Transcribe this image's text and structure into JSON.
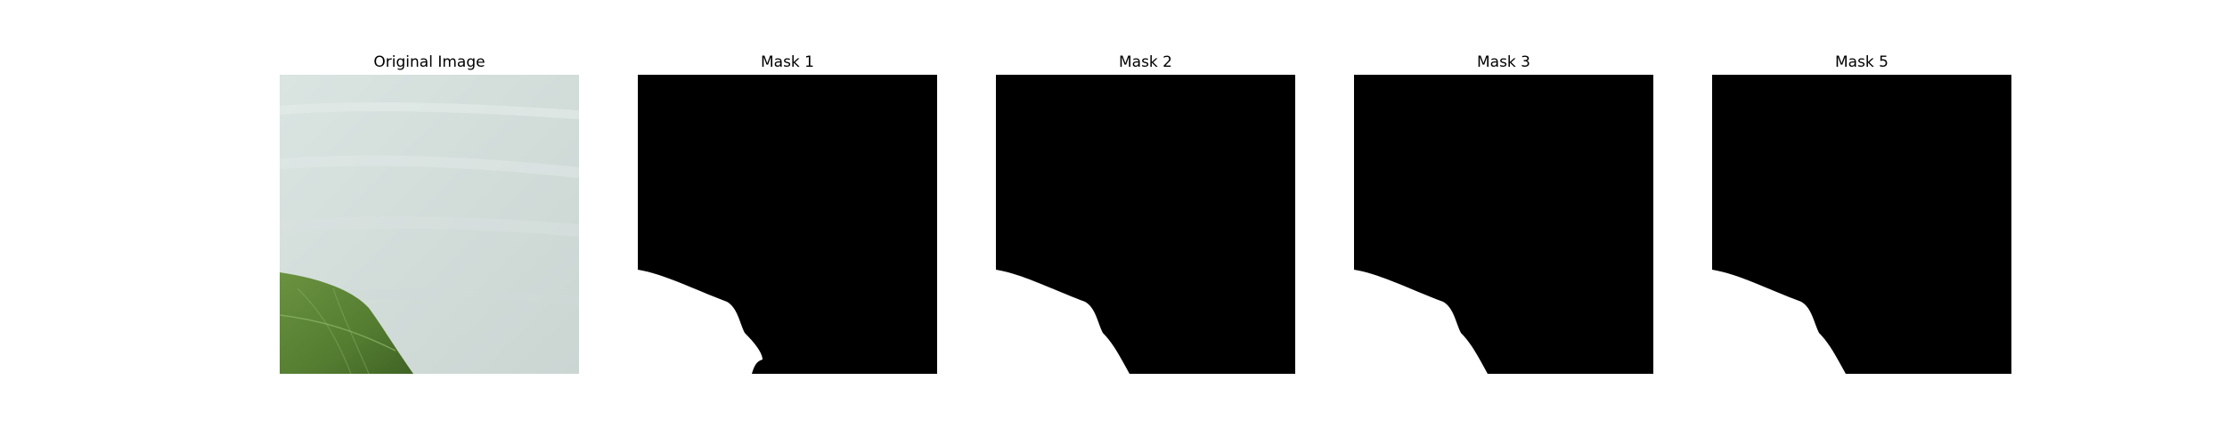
{
  "panels": [
    {
      "title": "Original Image",
      "kind": "photo"
    },
    {
      "title": "Mask 1",
      "kind": "mask"
    },
    {
      "title": "Mask 2",
      "kind": "mask"
    },
    {
      "title": "Mask 3",
      "kind": "mask"
    },
    {
      "title": "Mask 5",
      "kind": "mask"
    }
  ],
  "colors": {
    "background": "#ffffff",
    "mask_black": "#000000",
    "mask_white": "#ffffff",
    "photo_bg": "#d3dedb",
    "leaf_dark": "#4c6e2c",
    "leaf_mid": "#5f8a35"
  }
}
